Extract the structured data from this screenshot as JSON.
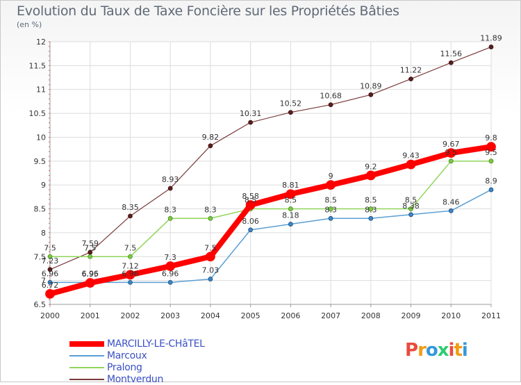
{
  "title": "Evolution du Taux de Taxe Foncière sur les Propriétés Bâties",
  "unit": "(en %)",
  "logo": {
    "text": "Proxiti",
    "colors": [
      "#e84c3d",
      "#f39c12",
      "#3498db",
      "#2ecc71",
      "#e84c3d",
      "#f39c12",
      "#3498db"
    ]
  },
  "chart_data": {
    "type": "line",
    "title": "Evolution du Taux de Taxe Foncière sur les Propriétés Bâties",
    "ylabel": "(en %)",
    "xlabel": "",
    "ylim": [
      6.5,
      12
    ],
    "yticks": [
      6.5,
      7,
      7.5,
      8,
      8.5,
      9,
      9.5,
      10,
      10.5,
      11,
      11.5,
      12
    ],
    "ytick_labels": [
      "6.5",
      "7",
      "7.5",
      "8",
      "8.5",
      "9",
      "9.5",
      "10",
      "10.5",
      "11",
      "11.5",
      "12"
    ],
    "categories": [
      "2000",
      "2001",
      "2002",
      "2003",
      "2004",
      "2005",
      "2006",
      "2007",
      "2008",
      "2009",
      "2010",
      "2011"
    ],
    "grid": true,
    "legend_position": "bottom-left",
    "series": [
      {
        "name": "MARCILLY-LE-CHâTEL",
        "color": "#ff0000",
        "values": [
          6.72,
          6.95,
          7.12,
          7.3,
          7.5,
          8.58,
          8.81,
          9,
          9.2,
          9.43,
          9.67,
          9.8
        ],
        "labels": [
          "6.72",
          "6.95",
          "7.12",
          "7.3",
          "7.5",
          "8.58",
          "8.81",
          "9",
          "9.2",
          "9.43",
          "9.67",
          "9.8"
        ]
      },
      {
        "name": "Marcoux",
        "color": "#5a9fd4",
        "values": [
          6.96,
          6.96,
          6.96,
          6.96,
          7.03,
          8.06,
          8.18,
          8.3,
          8.3,
          8.38,
          8.46,
          8.9
        ],
        "labels": [
          "6.96",
          "6.96",
          "6.96",
          "6.96",
          "7.03",
          "8.06",
          "8.18",
          "8.3",
          "8.3",
          "8.38",
          "8.46",
          "8.9"
        ]
      },
      {
        "name": "Pralong",
        "color": "#8fd65a",
        "values": [
          7.5,
          7.5,
          7.5,
          8.3,
          8.3,
          8.5,
          8.5,
          8.5,
          8.5,
          8.5,
          9.5,
          9.5
        ],
        "labels": [
          "7.5",
          "7.5",
          "7.5",
          "8.3",
          "8.3",
          "8.5",
          "8.5",
          "8.5",
          "8.5",
          "8.5",
          "9.5",
          "9.5"
        ]
      },
      {
        "name": "Montverdun",
        "color": "#7a3a3a",
        "values": [
          7.23,
          7.59,
          8.35,
          8.93,
          9.82,
          10.31,
          10.52,
          10.68,
          10.89,
          11.22,
          11.56,
          11.89
        ],
        "labels": [
          "7.23",
          "7.59",
          "8.35",
          "8.93",
          "9.82",
          "10.31",
          "10.52",
          "10.68",
          "10.89",
          "11.22",
          "11.56",
          "11.89"
        ]
      }
    ]
  }
}
